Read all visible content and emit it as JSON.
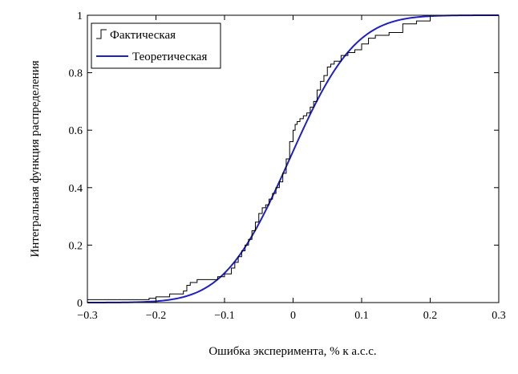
{
  "chart_data": {
    "type": "line",
    "title": "",
    "xlabel": "Ошибка эксперимента, % к а.с.с.",
    "ylabel": "Интегральная функция распределения",
    "xlim": [
      -0.3,
      0.3
    ],
    "ylim": [
      0,
      1
    ],
    "x_ticks": [
      "−0.3",
      "−0.2",
      "−0.1",
      "0",
      "0.1",
      "0.2",
      "0.3"
    ],
    "y_ticks": [
      "0",
      "0.2",
      "0.4",
      "0.6",
      "0.8",
      "1"
    ],
    "grid": false,
    "legend_position": "top-left",
    "series": [
      {
        "name": "Фактическая",
        "style": "step",
        "color": "#000000",
        "x": [
          -0.3,
          -0.21,
          -0.2,
          -0.18,
          -0.16,
          -0.155,
          -0.15,
          -0.14,
          -0.12,
          -0.11,
          -0.1,
          -0.09,
          -0.085,
          -0.08,
          -0.075,
          -0.07,
          -0.065,
          -0.06,
          -0.055,
          -0.05,
          -0.045,
          -0.04,
          -0.035,
          -0.03,
          -0.025,
          -0.02,
          -0.015,
          -0.01,
          -0.005,
          0.0,
          0.003,
          0.006,
          0.01,
          0.015,
          0.02,
          0.025,
          0.03,
          0.035,
          0.04,
          0.045,
          0.05,
          0.055,
          0.06,
          0.07,
          0.08,
          0.09,
          0.1,
          0.11,
          0.12,
          0.14,
          0.16,
          0.18,
          0.2,
          0.3
        ],
        "y": [
          0.01,
          0.015,
          0.02,
          0.03,
          0.04,
          0.06,
          0.07,
          0.08,
          0.08,
          0.09,
          0.1,
          0.12,
          0.14,
          0.16,
          0.18,
          0.2,
          0.22,
          0.25,
          0.28,
          0.31,
          0.33,
          0.34,
          0.36,
          0.38,
          0.4,
          0.42,
          0.45,
          0.5,
          0.56,
          0.6,
          0.62,
          0.63,
          0.64,
          0.65,
          0.66,
          0.68,
          0.7,
          0.74,
          0.77,
          0.79,
          0.82,
          0.83,
          0.84,
          0.86,
          0.87,
          0.88,
          0.9,
          0.92,
          0.93,
          0.94,
          0.97,
          0.98,
          1.0,
          1.0
        ]
      },
      {
        "name": "Теоретическая",
        "style": "smooth",
        "color": "#1f1fc8",
        "mean": -0.005,
        "sd": 0.075,
        "x": [
          -0.3,
          -0.28,
          -0.26,
          -0.24,
          -0.22,
          -0.2,
          -0.18,
          -0.16,
          -0.14,
          -0.12,
          -0.1,
          -0.08,
          -0.06,
          -0.04,
          -0.02,
          0.0,
          0.02,
          0.04,
          0.06,
          0.08,
          0.1,
          0.12,
          0.14,
          0.16,
          0.18,
          0.2,
          0.22,
          0.24,
          0.26,
          0.28,
          0.3
        ],
        "y": [
          0.0,
          0.0001,
          0.0002,
          0.0008,
          0.0021,
          0.0047,
          0.0099,
          0.0193,
          0.0359,
          0.0627,
          0.1023,
          0.1587,
          0.2317,
          0.321,
          0.4207,
          0.5265,
          0.6306,
          0.7257,
          0.8068,
          0.8707,
          0.9192,
          0.9525,
          0.9744,
          0.9869,
          0.9938,
          0.9974,
          0.999,
          0.9996,
          0.9999,
          1.0,
          1.0
        ]
      }
    ]
  }
}
